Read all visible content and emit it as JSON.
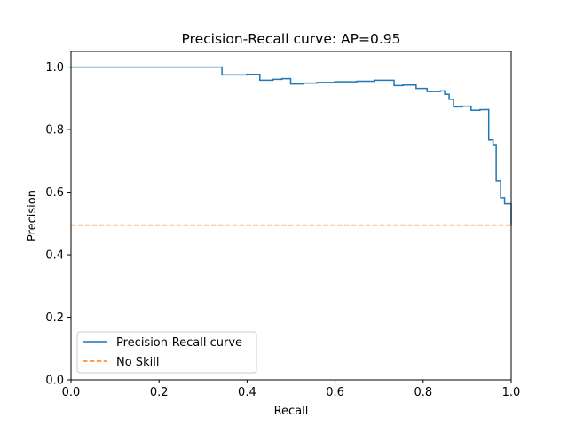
{
  "chart_data": {
    "type": "line",
    "title": "Precision-Recall curve: AP=0.95",
    "xlabel": "Recall",
    "ylabel": "Precision",
    "xlim": [
      0,
      1
    ],
    "ylim": [
      0,
      1.05
    ],
    "x_ticks": [
      {
        "value": 0.0,
        "label": "0.0"
      },
      {
        "value": 0.2,
        "label": "0.2"
      },
      {
        "value": 0.4,
        "label": "0.4"
      },
      {
        "value": 0.6,
        "label": "0.6"
      },
      {
        "value": 0.8,
        "label": "0.8"
      },
      {
        "value": 1.0,
        "label": "1.0"
      }
    ],
    "y_ticks": [
      {
        "value": 0.0,
        "label": "0.0"
      },
      {
        "value": 0.2,
        "label": "0.2"
      },
      {
        "value": 0.4,
        "label": "0.4"
      },
      {
        "value": 0.6,
        "label": "0.6"
      },
      {
        "value": 0.8,
        "label": "0.8"
      },
      {
        "value": 1.0,
        "label": "1.0"
      }
    ],
    "grid": false,
    "legend_position": "lower-left",
    "series": [
      {
        "name": "Precision-Recall curve",
        "color": "#1f77b4",
        "style": "solid",
        "drawstyle": "steps-post",
        "points": [
          [
            0.0,
            1.0
          ],
          [
            0.343,
            1.0
          ],
          [
            0.343,
            0.975
          ],
          [
            0.399,
            0.977
          ],
          [
            0.429,
            0.979
          ],
          [
            0.429,
            0.958
          ],
          [
            0.459,
            0.961
          ],
          [
            0.479,
            0.963
          ],
          [
            0.499,
            0.963
          ],
          [
            0.499,
            0.946
          ],
          [
            0.529,
            0.949
          ],
          [
            0.559,
            0.951
          ],
          [
            0.599,
            0.953
          ],
          [
            0.649,
            0.955
          ],
          [
            0.689,
            0.958
          ],
          [
            0.734,
            0.96
          ],
          [
            0.734,
            0.941
          ],
          [
            0.754,
            0.943
          ],
          [
            0.784,
            0.943
          ],
          [
            0.784,
            0.932
          ],
          [
            0.809,
            0.932
          ],
          [
            0.809,
            0.922
          ],
          [
            0.839,
            0.924
          ],
          [
            0.849,
            0.924
          ],
          [
            0.849,
            0.913
          ],
          [
            0.859,
            0.913
          ],
          [
            0.859,
            0.897
          ],
          [
            0.869,
            0.897
          ],
          [
            0.869,
            0.873
          ],
          [
            0.889,
            0.875
          ],
          [
            0.909,
            0.877
          ],
          [
            0.909,
            0.862
          ],
          [
            0.929,
            0.864
          ],
          [
            0.949,
            0.867
          ],
          [
            0.949,
            0.767
          ],
          [
            0.959,
            0.767
          ],
          [
            0.959,
            0.752
          ],
          [
            0.966,
            0.752
          ],
          [
            0.966,
            0.636
          ],
          [
            0.976,
            0.636
          ],
          [
            0.976,
            0.582
          ],
          [
            0.985,
            0.582
          ],
          [
            0.985,
            0.563
          ],
          [
            1.0,
            0.563
          ],
          [
            1.0,
            0.495
          ]
        ]
      },
      {
        "name": "No Skill",
        "color": "#ff7f0e",
        "style": "dashed",
        "drawstyle": "default",
        "points": [
          [
            0.0,
            0.495
          ],
          [
            1.0,
            0.495
          ]
        ]
      }
    ]
  }
}
